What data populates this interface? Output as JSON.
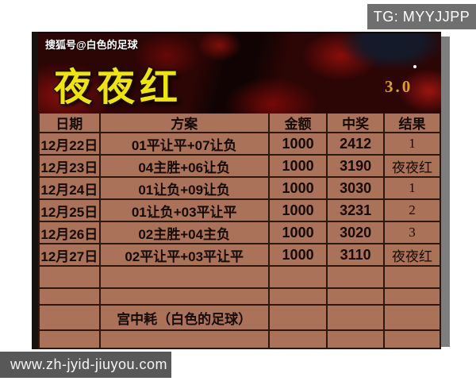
{
  "badges": {
    "tg": "TG: MYYJJPP",
    "website": "www.zh-jyid-jiuyou.com"
  },
  "header": {
    "channel": "搜狐号@白色的足球",
    "title": "夜夜红",
    "version": "3.0"
  },
  "table": {
    "columns": [
      "日期",
      "方案",
      "金额",
      "中奖",
      "结果"
    ],
    "rows": [
      {
        "date": "12月22日",
        "plan": "01平让平+07让负",
        "amount": "1000",
        "win": "2412",
        "result": "1"
      },
      {
        "date": "12月23日",
        "plan": "04主胜+06让负",
        "amount": "1000",
        "win": "3190",
        "result": "夜夜红"
      },
      {
        "date": "12月24日",
        "plan": "01让负+09让负",
        "amount": "1000",
        "win": "3030",
        "result": "1"
      },
      {
        "date": "12月25日",
        "plan": "01让负+03平让平",
        "amount": "1000",
        "win": "3231",
        "result": "2"
      },
      {
        "date": "12月26日",
        "plan": "02主胜+04主负",
        "amount": "1000",
        "win": "3020",
        "result": "3"
      },
      {
        "date": "12月27日",
        "plan": "02平让平+03平让平",
        "amount": "1000",
        "win": "3110",
        "result": "夜夜红"
      }
    ],
    "note": "宫中耗（白色的足球）"
  },
  "colors": {
    "table_bg": "#aa7259",
    "table_border": "#2e170d",
    "title_yellow": "#f0e606",
    "version_gold": "#d9a02a",
    "banner_dark_red": "#2c0505",
    "tg_badge_gray": "#6f6f6f",
    "site_badge_gray": "#585858"
  }
}
